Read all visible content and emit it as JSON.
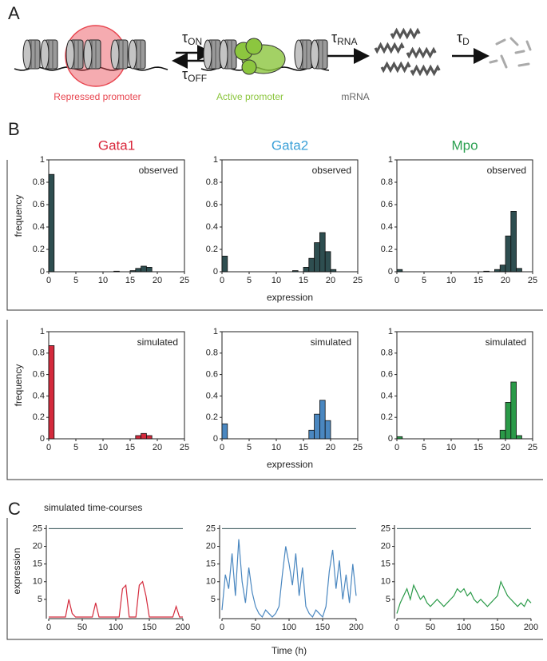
{
  "panel_labels": [
    "A",
    "B",
    "C"
  ],
  "diagram": {
    "tau": "τ",
    "on": "ON",
    "off": "OFF",
    "rna": "RNA",
    "d": "D",
    "repressed": "Repressed promoter",
    "active": "Active promoter",
    "mrna": "mRNA",
    "repressed_color": "#e8454f",
    "active_color": "#8cc63f",
    "mrna_color": "#666666"
  },
  "chart_data": [
    {
      "type": "histogram",
      "title": "Gata1",
      "title_color": "#d9263a",
      "annotation": "observed",
      "ylabel": "frequency",
      "color": "#2e4e50",
      "bins": [
        0,
        1,
        2,
        3,
        4,
        5,
        6,
        7,
        8,
        9,
        10,
        11,
        12,
        13,
        14,
        15,
        16,
        17,
        18,
        19,
        20,
        21,
        22,
        23,
        24,
        25
      ],
      "values": [
        0.87,
        0,
        0,
        0,
        0,
        0,
        0,
        0,
        0,
        0,
        0,
        0,
        0.005,
        0,
        0,
        0.01,
        0.03,
        0.05,
        0.04,
        0,
        0,
        0,
        0,
        0,
        0
      ],
      "xlim": [
        0,
        25
      ],
      "ylim": [
        0,
        1
      ],
      "xticks": [
        0,
        5,
        10,
        15,
        20,
        25
      ],
      "yticks": [
        0,
        0.2,
        0.4,
        0.6,
        0.8,
        1
      ]
    },
    {
      "type": "histogram",
      "title": "Gata2",
      "title_color": "#3aa0d8",
      "annotation": "observed",
      "xlabel": "expression",
      "color": "#2e4e50",
      "bins": [
        0,
        1,
        2,
        3,
        4,
        5,
        6,
        7,
        8,
        9,
        10,
        11,
        12,
        13,
        14,
        15,
        16,
        17,
        18,
        19,
        20,
        21,
        22,
        23,
        24,
        25
      ],
      "values": [
        0.14,
        0,
        0,
        0,
        0,
        0,
        0,
        0,
        0,
        0,
        0,
        0,
        0,
        0.01,
        0,
        0.04,
        0.12,
        0.26,
        0.35,
        0.18,
        0.02,
        0,
        0,
        0,
        0
      ],
      "xlim": [
        0,
        25
      ],
      "ylim": [
        0,
        1
      ],
      "xticks": [
        0,
        5,
        10,
        15,
        20,
        25
      ],
      "yticks": [
        0,
        0.2,
        0.4,
        0.6,
        0.8,
        1
      ]
    },
    {
      "type": "histogram",
      "title": "Mpo",
      "title_color": "#2aa050",
      "annotation": "observed",
      "color": "#2e4e50",
      "bins": [
        0,
        1,
        2,
        3,
        4,
        5,
        6,
        7,
        8,
        9,
        10,
        11,
        12,
        13,
        14,
        15,
        16,
        17,
        18,
        19,
        20,
        21,
        22,
        23,
        24,
        25
      ],
      "values": [
        0.02,
        0,
        0,
        0,
        0,
        0,
        0,
        0,
        0,
        0,
        0,
        0,
        0,
        0,
        0,
        0,
        0.005,
        0,
        0.02,
        0.06,
        0.32,
        0.54,
        0.03,
        0,
        0
      ],
      "xlim": [
        0,
        25
      ],
      "ylim": [
        0,
        1
      ],
      "xticks": [
        0,
        5,
        10,
        15,
        20,
        25
      ],
      "yticks": [
        0,
        0.2,
        0.4,
        0.6,
        0.8,
        1
      ]
    },
    {
      "type": "histogram",
      "annotation": "simulated",
      "ylabel": "frequency",
      "color": "#d42a3c",
      "bins": [
        0,
        1,
        2,
        3,
        4,
        5,
        6,
        7,
        8,
        9,
        10,
        11,
        12,
        13,
        14,
        15,
        16,
        17,
        18,
        19,
        20,
        21,
        22,
        23,
        24,
        25
      ],
      "values": [
        0.87,
        0,
        0,
        0,
        0,
        0,
        0,
        0,
        0,
        0,
        0,
        0,
        0,
        0,
        0,
        0,
        0.03,
        0.05,
        0.03,
        0,
        0,
        0,
        0,
        0,
        0
      ],
      "xlim": [
        0,
        25
      ],
      "ylim": [
        0,
        1
      ],
      "xticks": [
        0,
        5,
        10,
        15,
        20,
        25
      ],
      "yticks": [
        0,
        0.2,
        0.4,
        0.6,
        0.8,
        1
      ]
    },
    {
      "type": "histogram",
      "annotation": "simulated",
      "xlabel": "expression",
      "color": "#4a87c0",
      "bins": [
        0,
        1,
        2,
        3,
        4,
        5,
        6,
        7,
        8,
        9,
        10,
        11,
        12,
        13,
        14,
        15,
        16,
        17,
        18,
        19,
        20,
        21,
        22,
        23,
        24,
        25
      ],
      "values": [
        0.14,
        0,
        0,
        0,
        0,
        0,
        0,
        0,
        0,
        0,
        0,
        0,
        0,
        0,
        0,
        0,
        0.08,
        0.23,
        0.36,
        0.17,
        0,
        0,
        0,
        0,
        0
      ],
      "xlim": [
        0,
        25
      ],
      "ylim": [
        0,
        1
      ],
      "xticks": [
        0,
        5,
        10,
        15,
        20,
        25
      ],
      "yticks": [
        0,
        0.2,
        0.4,
        0.6,
        0.8,
        1
      ]
    },
    {
      "type": "histogram",
      "annotation": "simulated",
      "color": "#2a9a48",
      "bins": [
        0,
        1,
        2,
        3,
        4,
        5,
        6,
        7,
        8,
        9,
        10,
        11,
        12,
        13,
        14,
        15,
        16,
        17,
        18,
        19,
        20,
        21,
        22,
        23,
        24,
        25
      ],
      "values": [
        0.02,
        0,
        0,
        0,
        0,
        0,
        0,
        0,
        0,
        0,
        0,
        0,
        0,
        0,
        0,
        0,
        0,
        0,
        0,
        0.08,
        0.34,
        0.53,
        0.03,
        0,
        0
      ],
      "xlim": [
        0,
        25
      ],
      "ylim": [
        0,
        1
      ],
      "xticks": [
        0,
        5,
        10,
        15,
        20,
        25
      ],
      "yticks": [
        0,
        0.2,
        0.4,
        0.6,
        0.8,
        1
      ]
    },
    {
      "type": "line",
      "subtitle": "simulated time-courses",
      "ylabel": "expression",
      "state_color": "#2e4e50",
      "x": [
        0,
        5,
        10,
        15,
        20,
        25,
        30,
        35,
        40,
        45,
        50,
        55,
        60,
        65,
        70,
        75,
        80,
        85,
        90,
        95,
        100,
        105,
        110,
        115,
        120,
        125,
        130,
        135,
        140,
        145,
        150,
        155,
        160,
        165,
        170,
        175,
        180,
        185,
        190,
        195,
        200
      ],
      "series": [
        {
          "name": "Gata1",
          "color": "#d42a3c",
          "values": [
            0,
            0,
            0,
            0,
            0,
            0,
            5,
            1,
            0,
            0,
            0,
            0,
            0,
            0,
            4,
            0,
            0,
            0,
            0,
            0,
            0,
            0,
            8,
            9,
            0,
            0,
            0,
            9,
            10,
            6,
            0,
            0,
            0,
            0,
            0,
            0,
            0,
            0,
            3,
            0,
            0
          ]
        }
      ],
      "xlim": [
        0,
        200
      ],
      "ylim": [
        0,
        26
      ],
      "xticks": [
        0,
        50,
        100,
        150,
        200
      ],
      "yticks": [
        5,
        10,
        15,
        20,
        25
      ]
    },
    {
      "type": "line",
      "xlabel": "Time (h)",
      "state_color": "#2e4e50",
      "x": [
        0,
        5,
        10,
        15,
        20,
        25,
        30,
        35,
        40,
        45,
        50,
        55,
        60,
        65,
        70,
        75,
        80,
        85,
        90,
        95,
        100,
        105,
        110,
        115,
        120,
        125,
        130,
        135,
        140,
        145,
        150,
        155,
        160,
        165,
        170,
        175,
        180,
        185,
        190,
        195,
        200
      ],
      "series": [
        {
          "name": "Gata2",
          "color": "#4a87c0",
          "values": [
            2,
            12,
            8,
            18,
            6,
            22,
            10,
            4,
            14,
            7,
            3,
            1,
            0,
            2,
            1,
            0,
            1,
            3,
            12,
            20,
            15,
            9,
            18,
            6,
            14,
            3,
            1,
            0,
            2,
            1,
            0,
            3,
            13,
            19,
            8,
            16,
            5,
            12,
            4,
            15,
            6
          ]
        }
      ],
      "xlim": [
        0,
        200
      ],
      "ylim": [
        0,
        26
      ],
      "xticks": [
        0,
        50,
        100,
        150,
        200
      ],
      "yticks": [
        5,
        10,
        15,
        20,
        25
      ]
    },
    {
      "type": "line",
      "state_color": "#2e4e50",
      "x": [
        0,
        5,
        10,
        15,
        20,
        25,
        30,
        35,
        40,
        45,
        50,
        55,
        60,
        65,
        70,
        75,
        80,
        85,
        90,
        95,
        100,
        105,
        110,
        115,
        120,
        125,
        130,
        135,
        140,
        145,
        150,
        155,
        160,
        165,
        170,
        175,
        180,
        185,
        190,
        195,
        200
      ],
      "series": [
        {
          "name": "Mpo",
          "color": "#2a9a48",
          "values": [
            1,
            4,
            6,
            8,
            5,
            9,
            7,
            5,
            6,
            4,
            3,
            4,
            5,
            4,
            3,
            4,
            5,
            6,
            8,
            7,
            8,
            6,
            7,
            5,
            4,
            5,
            4,
            3,
            4,
            5,
            6,
            10,
            8,
            6,
            5,
            4,
            3,
            4,
            3,
            5,
            4
          ]
        }
      ],
      "xlim": [
        0,
        200
      ],
      "ylim": [
        0,
        26
      ],
      "xticks": [
        0,
        50,
        100,
        150,
        200
      ],
      "yticks": [
        5,
        10,
        15,
        20,
        25
      ]
    }
  ]
}
